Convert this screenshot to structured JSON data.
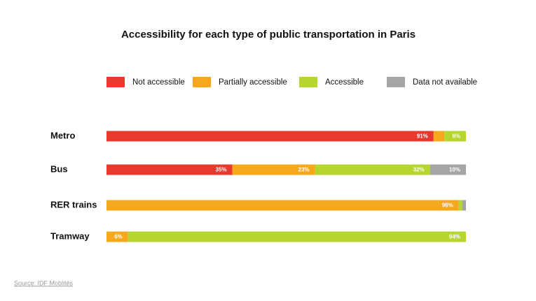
{
  "chart_data": {
    "type": "stacked-barh",
    "title": "Accessibility for each type of public transportation in Paris",
    "categories": [
      "Metro",
      "Bus",
      "RER trains",
      "Tramway"
    ],
    "xlim": [
      0,
      100
    ],
    "series": [
      {
        "name": "Not accessible",
        "color": "#e8392f",
        "values": [
          91,
          35,
          0,
          0
        ],
        "value_labels": [
          "91%",
          "35%",
          null,
          null
        ]
      },
      {
        "name": "Partially accessible",
        "color": "#f6a81c",
        "values": [
          3,
          23,
          98,
          6
        ],
        "value_labels": [
          null,
          "23%",
          "98%",
          "6%"
        ]
      },
      {
        "name": "Accessible",
        "color": "#b4d62e",
        "values": [
          6,
          32,
          1,
          94
        ],
        "value_labels": [
          "6%",
          "32%",
          null,
          "94%"
        ]
      },
      {
        "name": "Data not available",
        "color": "#a5a5a5",
        "values": [
          0,
          10,
          1,
          0
        ],
        "value_labels": [
          null,
          "10%",
          null,
          null
        ]
      }
    ],
    "source": "Source: IDF Moblités"
  }
}
